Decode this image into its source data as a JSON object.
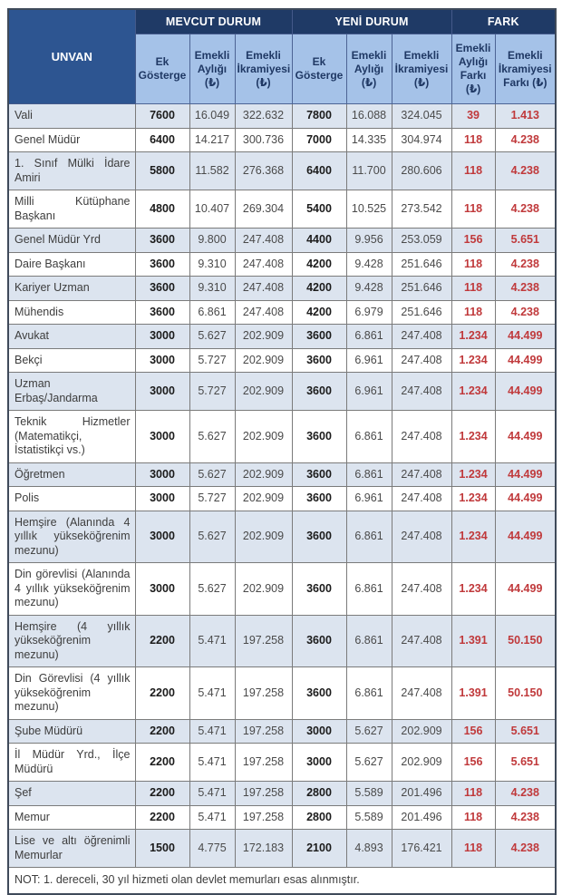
{
  "chart_data": {
    "type": "table",
    "row_header": "UNVAN",
    "column_groups": [
      {
        "label": "MEVCUT DURUM",
        "span": 3
      },
      {
        "label": "YENİ DURUM",
        "span": 3
      },
      {
        "label": "FARK",
        "span": 2
      }
    ],
    "columns": [
      "Ek Gösterge",
      "Emekli Aylığı (₺)",
      "Emekli İkramiyesi (₺)",
      "Ek Gösterge",
      "Emekli Aylığı (₺)",
      "Emekli İkramiyesi (₺)",
      "Emekli Aylığı Farkı (₺)",
      "Emekli İkramiyesi Farkı (₺)"
    ],
    "rows": [
      {
        "unvan": "Vali",
        "values": [
          "7600",
          "16.049",
          "322.632",
          "7800",
          "16.088",
          "324.045",
          "39",
          "1.413"
        ]
      },
      {
        "unvan": "Genel Müdür",
        "values": [
          "6400",
          "14.217",
          "300.736",
          "7000",
          "14.335",
          "304.974",
          "118",
          "4.238"
        ]
      },
      {
        "unvan": "1. Sınıf Mülki İdare Amiri",
        "values": [
          "5800",
          "11.582",
          "276.368",
          "6400",
          "11.700",
          "280.606",
          "118",
          "4.238"
        ]
      },
      {
        "unvan": "Milli Kütüphane Başkanı",
        "values": [
          "4800",
          "10.407",
          "269.304",
          "5400",
          "10.525",
          "273.542",
          "118",
          "4.238"
        ]
      },
      {
        "unvan": "Genel Müdür Yrd",
        "values": [
          "3600",
          "9.800",
          "247.408",
          "4400",
          "9.956",
          "253.059",
          "156",
          "5.651"
        ]
      },
      {
        "unvan": "Daire Başkanı",
        "values": [
          "3600",
          "9.310",
          "247.408",
          "4200",
          "9.428",
          "251.646",
          "118",
          "4.238"
        ]
      },
      {
        "unvan": "Kariyer Uzman",
        "values": [
          "3600",
          "9.310",
          "247.408",
          "4200",
          "9.428",
          "251.646",
          "118",
          "4.238"
        ]
      },
      {
        "unvan": "Mühendis",
        "values": [
          "3600",
          "6.861",
          "247.408",
          "4200",
          "6.979",
          "251.646",
          "118",
          "4.238"
        ]
      },
      {
        "unvan": "Avukat",
        "values": [
          "3000",
          "5.627",
          "202.909",
          "3600",
          "6.861",
          "247.408",
          "1.234",
          "44.499"
        ]
      },
      {
        "unvan": "Bekçi",
        "values": [
          "3000",
          "5.727",
          "202.909",
          "3600",
          "6.961",
          "247.408",
          "1.234",
          "44.499"
        ]
      },
      {
        "unvan": "Uzman Erbaş/Jandarma",
        "values": [
          "3000",
          "5.727",
          "202.909",
          "3600",
          "6.961",
          "247.408",
          "1.234",
          "44.499"
        ]
      },
      {
        "unvan": "Teknik Hizmetler (Matematikçi, İstatistikçi vs.)",
        "values": [
          "3000",
          "5.627",
          "202.909",
          "3600",
          "6.861",
          "247.408",
          "1.234",
          "44.499"
        ]
      },
      {
        "unvan": "Öğretmen",
        "values": [
          "3000",
          "5.627",
          "202.909",
          "3600",
          "6.861",
          "247.408",
          "1.234",
          "44.499"
        ]
      },
      {
        "unvan": "Polis",
        "values": [
          "3000",
          "5.727",
          "202.909",
          "3600",
          "6.961",
          "247.408",
          "1.234",
          "44.499"
        ]
      },
      {
        "unvan": "Hemşire (Alanında 4 yıllık yükseköğrenim mezunu)",
        "values": [
          "3000",
          "5.627",
          "202.909",
          "3600",
          "6.861",
          "247.408",
          "1.234",
          "44.499"
        ]
      },
      {
        "unvan": "Din görevlisi (Alanında 4 yıllık yükseköğrenim mezunu)",
        "values": [
          "3000",
          "5.627",
          "202.909",
          "3600",
          "6.861",
          "247.408",
          "1.234",
          "44.499"
        ]
      },
      {
        "unvan": "Hemşire (4 yıllık yükseköğrenim mezunu)",
        "values": [
          "2200",
          "5.471",
          "197.258",
          "3600",
          "6.861",
          "247.408",
          "1.391",
          "50.150"
        ]
      },
      {
        "unvan": "Din Görevlisi (4 yıllık yükseköğrenim mezunu)",
        "values": [
          "2200",
          "5.471",
          "197.258",
          "3600",
          "6.861",
          "247.408",
          "1.391",
          "50.150"
        ]
      },
      {
        "unvan": "Şube Müdürü",
        "values": [
          "2200",
          "5.471",
          "197.258",
          "3000",
          "5.627",
          "202.909",
          "156",
          "5.651"
        ]
      },
      {
        "unvan": "İl Müdür Yrd., İlçe Müdürü",
        "values": [
          "2200",
          "5.471",
          "197.258",
          "3000",
          "5.627",
          "202.909",
          "156",
          "5.651"
        ]
      },
      {
        "unvan": "Şef",
        "values": [
          "2200",
          "5.471",
          "197.258",
          "2800",
          "5.589",
          "201.496",
          "118",
          "4.238"
        ]
      },
      {
        "unvan": "Memur",
        "values": [
          "2200",
          "5.471",
          "197.258",
          "2800",
          "5.589",
          "201.496",
          "118",
          "4.238"
        ]
      },
      {
        "unvan": "Lise ve altı öğrenimli Memurlar",
        "values": [
          "1500",
          "4.775",
          "172.183",
          "2100",
          "4.893",
          "176.421",
          "118",
          "4.238"
        ]
      }
    ],
    "note": "NOT: 1. dereceli, 30 yıl hizmeti olan devlet memurları esas alınmıştır."
  },
  "colors": {
    "group_header_bg": "#1f3a66",
    "unvan_header_bg": "#2d5591",
    "sub_header_bg": "#a5c2e8",
    "sub_header_text": "#1f3864",
    "alt_row_bg": "#dce4ef",
    "fark_red": "#c0393b",
    "body_text": "#3d3d3d"
  }
}
